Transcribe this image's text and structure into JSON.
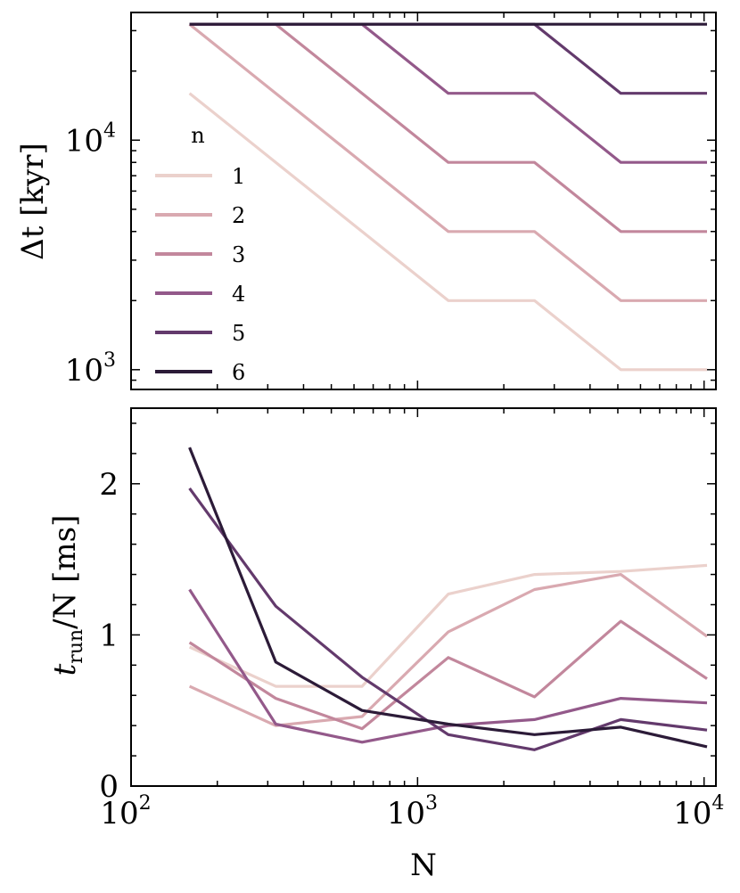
{
  "chart_data": [
    {
      "type": "line",
      "title": "",
      "xlabel": "",
      "ylabel": "Δt [kyr]",
      "xscale": "log",
      "yscale": "log",
      "x": [
        160,
        320,
        640,
        1280,
        2560,
        5120,
        10240
      ],
      "xlim": [
        100,
        11000
      ],
      "ylim": [
        820,
        36000
      ],
      "y_ticks": [
        {
          "base": "10",
          "exp": "3"
        },
        {
          "base": "10",
          "exp": "4"
        }
      ],
      "legend": {
        "title": "n",
        "location": "center-left"
      },
      "series": [
        {
          "name": "1",
          "color": "#ebd1cc",
          "values": [
            16000,
            8000,
            4000,
            2000,
            2000,
            1000,
            1000
          ]
        },
        {
          "name": "2",
          "color": "#d9a9b0",
          "values": [
            32000,
            16000,
            8000,
            4000,
            4000,
            2000,
            2000
          ]
        },
        {
          "name": "3",
          "color": "#c2879c",
          "values": [
            32000,
            32000,
            16000,
            8000,
            8000,
            4000,
            4000
          ]
        },
        {
          "name": "4",
          "color": "#93598a",
          "values": [
            32000,
            32000,
            32000,
            16000,
            16000,
            8000,
            8000
          ]
        },
        {
          "name": "5",
          "color": "#633a6c",
          "values": [
            32000,
            32000,
            32000,
            32000,
            32000,
            16000,
            16000
          ]
        },
        {
          "name": "6",
          "color": "#2c1b38",
          "values": [
            32000,
            32000,
            32000,
            32000,
            32000,
            32000,
            32000
          ]
        }
      ]
    },
    {
      "type": "line",
      "title": "",
      "xlabel": "N",
      "ylabel": "t_run / N [ms]",
      "ylabel_parts": {
        "t": "t",
        "sub": "run",
        "rest": "/N [ms]"
      },
      "xscale": "log",
      "yscale": "linear",
      "x": [
        160,
        320,
        640,
        1280,
        2560,
        5120,
        10240
      ],
      "xlim": [
        100,
        11000
      ],
      "ylim": [
        0,
        2.5
      ],
      "x_ticks": [
        {
          "base": "10",
          "exp": "2"
        },
        {
          "base": "10",
          "exp": "3"
        },
        {
          "base": "10",
          "exp": "4"
        }
      ],
      "y_ticks": [
        "0",
        "1",
        "2"
      ],
      "series": [
        {
          "name": "1",
          "color": "#ebd1cc",
          "values": [
            0.92,
            0.66,
            0.66,
            1.27,
            1.4,
            1.42,
            1.46
          ]
        },
        {
          "name": "2",
          "color": "#d9a9b0",
          "values": [
            0.66,
            0.4,
            0.46,
            1.02,
            1.3,
            1.4,
            0.99
          ]
        },
        {
          "name": "3",
          "color": "#c2879c",
          "values": [
            0.95,
            0.58,
            0.38,
            0.85,
            0.59,
            1.09,
            0.71
          ]
        },
        {
          "name": "4",
          "color": "#93598a",
          "values": [
            1.3,
            0.41,
            0.29,
            0.4,
            0.44,
            0.58,
            0.55
          ]
        },
        {
          "name": "5",
          "color": "#633a6c",
          "values": [
            1.97,
            1.19,
            0.72,
            0.34,
            0.24,
            0.44,
            0.37
          ]
        },
        {
          "name": "6",
          "color": "#2c1b38",
          "values": [
            2.24,
            0.82,
            0.5,
            0.41,
            0.34,
            0.39,
            0.26
          ]
        }
      ]
    }
  ]
}
